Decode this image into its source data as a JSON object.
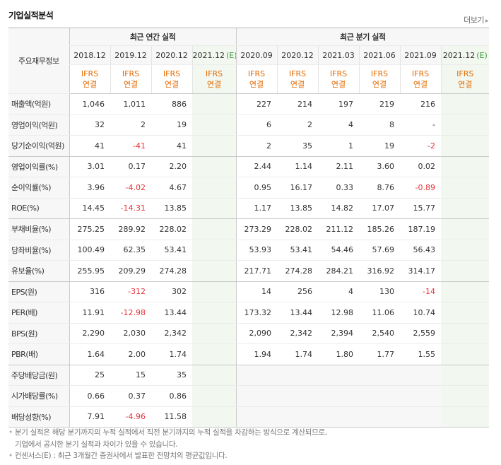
{
  "section_title": "기업실적분석",
  "more_label": "더보기",
  "header": {
    "main_label": "주요재무정보",
    "annual_group": "최근 연간 실적",
    "quarter_group": "최근 분기 실적",
    "periods": [
      {
        "label": "2018.12",
        "est": false
      },
      {
        "label": "2019.12",
        "est": false
      },
      {
        "label": "2020.12",
        "est": false
      },
      {
        "label": "2021.12",
        "est": true
      },
      {
        "label": "2020.09",
        "est": false
      },
      {
        "label": "2020.12",
        "est": false
      },
      {
        "label": "2021.03",
        "est": false
      },
      {
        "label": "2021.06",
        "est": false
      },
      {
        "label": "2021.09",
        "est": false
      },
      {
        "label": "2021.12",
        "est": true
      }
    ],
    "est_mark": "(E)",
    "ifrs_line1": "IFRS",
    "ifrs_line2": "연결"
  },
  "groups": [
    {
      "rows": [
        {
          "label": "매출액(억원)",
          "values": [
            "1,046",
            "1,011",
            "886",
            "",
            "227",
            "214",
            "197",
            "219",
            "216",
            ""
          ]
        },
        {
          "label": "영업이익(억원)",
          "values": [
            "32",
            "2",
            "19",
            "",
            "6",
            "2",
            "4",
            "8",
            "-",
            ""
          ]
        },
        {
          "label": "당기순이익(억원)",
          "values": [
            "41",
            "-41",
            "41",
            "",
            "2",
            "35",
            "1",
            "19",
            "-2",
            ""
          ]
        }
      ]
    },
    {
      "rows": [
        {
          "label": "영업이익률(%)",
          "values": [
            "3.01",
            "0.17",
            "2.20",
            "",
            "2.44",
            "1.14",
            "2.11",
            "3.60",
            "0.02",
            ""
          ]
        },
        {
          "label": "순이익률(%)",
          "values": [
            "3.96",
            "-4.02",
            "4.67",
            "",
            "0.95",
            "16.17",
            "0.33",
            "8.76",
            "-0.89",
            ""
          ]
        },
        {
          "label": "ROE(%)",
          "values": [
            "14.45",
            "-14.31",
            "13.85",
            "",
            "1.17",
            "13.85",
            "14.82",
            "17.07",
            "15.77",
            ""
          ]
        }
      ]
    },
    {
      "rows": [
        {
          "label": "부채비율(%)",
          "values": [
            "275.25",
            "289.92",
            "228.02",
            "",
            "273.29",
            "228.02",
            "211.12",
            "185.26",
            "187.19",
            ""
          ]
        },
        {
          "label": "당좌비율(%)",
          "values": [
            "100.49",
            "62.35",
            "53.41",
            "",
            "53.93",
            "53.41",
            "54.46",
            "57.69",
            "56.43",
            ""
          ]
        },
        {
          "label": "유보율(%)",
          "values": [
            "255.95",
            "209.29",
            "274.28",
            "",
            "217.71",
            "274.28",
            "284.21",
            "316.92",
            "314.17",
            ""
          ]
        }
      ]
    },
    {
      "rows": [
        {
          "label": "EPS(원)",
          "values": [
            "316",
            "-312",
            "302",
            "",
            "14",
            "256",
            "4",
            "130",
            "-14",
            ""
          ]
        },
        {
          "label": "PER(배)",
          "values": [
            "11.91",
            "-12.98",
            "13.44",
            "",
            "173.32",
            "13.44",
            "12.98",
            "11.06",
            "10.74",
            ""
          ]
        },
        {
          "label": "BPS(원)",
          "values": [
            "2,290",
            "2,030",
            "2,342",
            "",
            "2,090",
            "2,342",
            "2,394",
            "2,540",
            "2,559",
            ""
          ]
        },
        {
          "label": "PBR(배)",
          "values": [
            "1.64",
            "2.00",
            "1.74",
            "",
            "1.94",
            "1.74",
            "1.80",
            "1.77",
            "1.55",
            ""
          ]
        }
      ]
    },
    {
      "quarter_empty": true,
      "rows": [
        {
          "label": "주당배당금(원)",
          "values": [
            "25",
            "15",
            "35",
            "",
            "",
            "",
            "",
            "",
            "",
            ""
          ]
        },
        {
          "label": "시가배당률(%)",
          "values": [
            "0.66",
            "0.37",
            "0.86",
            "",
            "",
            "",
            "",
            "",
            "",
            ""
          ]
        },
        {
          "label": "배당성향(%)",
          "values": [
            "7.91",
            "-4.96",
            "11.58",
            "",
            "",
            "",
            "",
            "",
            "",
            ""
          ]
        }
      ]
    }
  ],
  "notes": [
    "분기 실적은 해당 분기까지의 누적 실적에서 직전 분기까지의 누적 실적을 차감하는 방식으로 계산되므로,",
    "기업에서 공시한 분기 실적과 차이가 있을 수 있습니다.",
    "컨센서스(E) : 최근 3개월간 증권사에서 발표한 전망치의 평균값입니다."
  ],
  "colors": {
    "negative": "#e6333b",
    "ifrs": "#e46a00",
    "estimate_bg": "#f2f8f0",
    "estimate_mark": "#3a9a3a"
  }
}
